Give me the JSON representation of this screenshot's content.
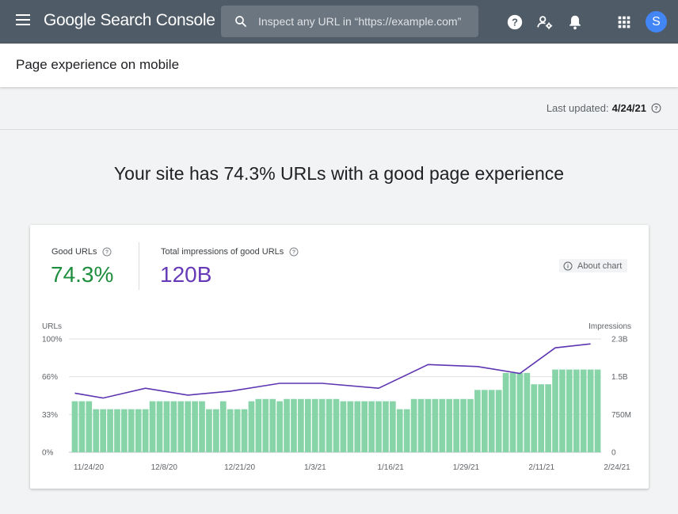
{
  "header": {
    "app_name": "Google Search Console",
    "search": {
      "placeholder": "Inspect any URL in “https://example.com”"
    },
    "avatar_letter": "S",
    "icons": [
      "menu-icon",
      "search-icon",
      "help-icon",
      "manage-users-icon",
      "notifications-icon",
      "apps-icon"
    ]
  },
  "page": {
    "title": "Page experience on mobile",
    "last_updated_label": "Last updated:",
    "last_updated_date": "4/24/21",
    "headline": "Your site has 74.3% URLs with a good page experience"
  },
  "card": {
    "good_urls": {
      "label": "Good URLs",
      "value": "74.3%"
    },
    "impressions": {
      "label": "Total impressions of good URLs",
      "value": "120B"
    },
    "about_chart": "About chart"
  },
  "colors": {
    "good": "#1e8e3e",
    "impressions": "#673ab7",
    "bar": "#87d4a8",
    "line": "#5e35b1"
  },
  "chart_data": {
    "type": "bar",
    "left_axis": {
      "label": "URLs",
      "ticks": [
        "100%",
        "66%",
        "33%",
        "0%"
      ],
      "range": [
        0,
        100
      ]
    },
    "right_axis": {
      "label": "Impressions",
      "ticks": [
        "2.3B",
        "1.5B",
        "750M",
        "0"
      ],
      "range_billions": [
        0,
        2.3
      ]
    },
    "x_tick_labels": [
      "11/24/20",
      "12/8/20",
      "12/21/20",
      "1/3/21",
      "1/16/21",
      "1/29/21",
      "2/11/21",
      "2/24/21"
    ],
    "series": [
      {
        "name": "Good URLs",
        "type": "bar",
        "values": [
          45,
          45,
          45,
          38,
          38,
          38,
          38,
          38,
          38,
          38,
          38,
          45,
          45,
          45,
          45,
          45,
          45,
          45,
          45,
          38,
          38,
          45,
          38,
          38,
          38,
          45,
          47,
          47,
          47,
          45,
          47,
          47,
          47,
          47,
          47,
          47,
          47,
          47,
          45,
          45,
          45,
          45,
          45,
          45,
          45,
          45,
          38,
          38,
          47,
          47,
          47,
          47,
          47,
          47,
          47,
          47,
          47,
          55,
          55,
          55,
          55,
          70,
          70,
          70,
          70,
          60,
          60,
          60,
          73,
          73,
          73,
          73,
          73,
          73,
          73
        ]
      },
      {
        "name": "Total impressions of good URLs",
        "type": "line",
        "axis": "right",
        "x": [
          0,
          4,
          10,
          16,
          22,
          29,
          35,
          43,
          50,
          57,
          63,
          68,
          73
        ],
        "values_billions": [
          1.2,
          1.1,
          1.3,
          1.16,
          1.24,
          1.4,
          1.4,
          1.3,
          1.78,
          1.74,
          1.6,
          2.12,
          2.2
        ]
      }
    ]
  }
}
